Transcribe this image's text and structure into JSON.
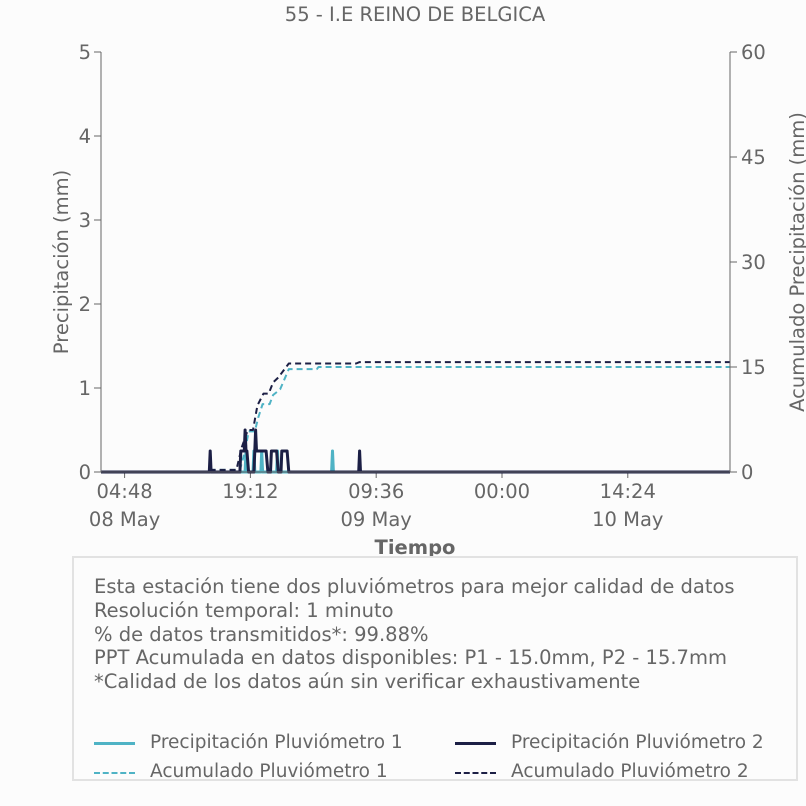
{
  "colors": {
    "p1": "#4fb3c5",
    "p2": "#1c1f45",
    "axis": "#666666",
    "text": "#666666"
  },
  "chart_data": {
    "type": "line",
    "title": "55 - I.E REINO DE BELGICA",
    "xlabel": "Tiempo",
    "ylabel_left": "Precipitación (mm)",
    "ylabel_right": "Acumulado Precipitación (mm)",
    "ylim_left": [
      0,
      5
    ],
    "ylim_right": [
      0,
      60
    ],
    "yticks_left": [
      "0",
      "1",
      "2",
      "3",
      "4",
      "5"
    ],
    "yticks_right": [
      "0",
      "15",
      "30",
      "45",
      "60"
    ],
    "x_unit": "hours since 08 May 00:00",
    "xlim": [
      2.1,
      74.1
    ],
    "xtick_labels": [
      {
        "x": 4.8,
        "time": "04:48",
        "date": "08 May"
      },
      {
        "x": 19.2,
        "time": "19:12",
        "date": ""
      },
      {
        "x": 33.6,
        "time": "09:36",
        "date": "09 May"
      },
      {
        "x": 48.0,
        "time": "00:00",
        "date": ""
      },
      {
        "x": 62.4,
        "time": "14:24",
        "date": "10 May"
      }
    ],
    "grid": false,
    "series": [
      {
        "name": "Precipitación Pluviómetro 1",
        "style": "solid",
        "axis": "left",
        "points": [
          [
            15.0,
            0.0
          ],
          [
            18.6,
            0.0
          ],
          [
            18.7,
            0.25
          ],
          [
            18.8,
            0.0
          ],
          [
            19.5,
            0.0
          ],
          [
            19.6,
            0.25
          ],
          [
            19.7,
            0.0
          ],
          [
            20.4,
            0.0
          ],
          [
            20.5,
            0.25
          ],
          [
            20.6,
            0.0
          ],
          [
            22.2,
            0.0
          ],
          [
            22.3,
            0.25
          ],
          [
            22.4,
            0.0
          ],
          [
            28.5,
            0.0
          ],
          [
            28.6,
            0.25
          ],
          [
            28.7,
            0.0
          ],
          [
            74.1,
            0.0
          ]
        ]
      },
      {
        "name": "Precipitación Pluviómetro 2",
        "style": "solid",
        "axis": "left",
        "points": [
          [
            2.1,
            0.0
          ],
          [
            14.5,
            0.0
          ],
          [
            14.6,
            0.25
          ],
          [
            14.7,
            0.0
          ],
          [
            18.0,
            0.0
          ],
          [
            18.1,
            0.25
          ],
          [
            18.2,
            0.25
          ],
          [
            18.3,
            0.25
          ],
          [
            18.4,
            0.25
          ],
          [
            18.5,
            0.25
          ],
          [
            18.6,
            0.5
          ],
          [
            18.7,
            0.25
          ],
          [
            18.8,
            0.25
          ],
          [
            19.0,
            0.0
          ],
          [
            19.6,
            0.0
          ],
          [
            19.7,
            0.25
          ],
          [
            19.8,
            0.5
          ],
          [
            19.9,
            0.25
          ],
          [
            20.0,
            0.25
          ],
          [
            20.2,
            0.25
          ],
          [
            20.4,
            0.25
          ],
          [
            20.6,
            0.25
          ],
          [
            20.8,
            0.25
          ],
          [
            21.0,
            0.25
          ],
          [
            21.2,
            0.0
          ],
          [
            21.5,
            0.0
          ],
          [
            21.6,
            0.25
          ],
          [
            21.8,
            0.25
          ],
          [
            22.0,
            0.25
          ],
          [
            22.2,
            0.25
          ],
          [
            22.4,
            0.0
          ],
          [
            22.7,
            0.0
          ],
          [
            22.8,
            0.25
          ],
          [
            23.0,
            0.25
          ],
          [
            23.2,
            0.25
          ],
          [
            23.4,
            0.25
          ],
          [
            23.6,
            0.0
          ],
          [
            31.6,
            0.0
          ],
          [
            31.7,
            0.25
          ],
          [
            31.8,
            0.0
          ],
          [
            74.1,
            0.0
          ]
        ]
      },
      {
        "name": "Acumulado Pluviómetro 1",
        "style": "dashed",
        "axis": "right",
        "points": [
          [
            2.1,
            0.0
          ],
          [
            14.6,
            0.0
          ],
          [
            14.7,
            0.3
          ],
          [
            18.0,
            0.3
          ],
          [
            18.6,
            3.0
          ],
          [
            19.0,
            5.8
          ],
          [
            19.7,
            5.8
          ],
          [
            20.1,
            7.8
          ],
          [
            20.6,
            9.7
          ],
          [
            21.4,
            9.7
          ],
          [
            21.8,
            11.0
          ],
          [
            22.6,
            11.8
          ],
          [
            23.6,
            14.7
          ],
          [
            26.8,
            14.7
          ],
          [
            27.0,
            15.0
          ],
          [
            74.1,
            15.0
          ]
        ]
      },
      {
        "name": "Acumulado Pluviómetro 2",
        "style": "dashed",
        "axis": "right",
        "points": [
          [
            2.1,
            0.0
          ],
          [
            14.6,
            0.0
          ],
          [
            14.7,
            0.3
          ],
          [
            17.6,
            0.3
          ],
          [
            18.2,
            3.5
          ],
          [
            18.9,
            6.0
          ],
          [
            19.5,
            6.0
          ],
          [
            20.0,
            9.5
          ],
          [
            20.7,
            11.2
          ],
          [
            21.3,
            11.2
          ],
          [
            21.8,
            12.8
          ],
          [
            22.4,
            13.5
          ],
          [
            23.6,
            15.5
          ],
          [
            31.3,
            15.5
          ],
          [
            31.7,
            15.7
          ],
          [
            74.1,
            15.7
          ]
        ]
      }
    ]
  },
  "info": {
    "lines": [
      "Esta estación tiene dos pluviómetros para mejor calidad de datos",
      "Resolución temporal: 1 minuto",
      "% de datos transmitidos*: 99.88%",
      "PPT Acumulada en datos disponibles: P1 - 15.0mm, P2 - 15.7mm",
      "*Calidad de los datos aún sin verificar exhaustivamente"
    ]
  },
  "legend": {
    "items": [
      {
        "label": "Precipitación Pluviómetro 1",
        "color": "#4fb3c5",
        "style": "solid"
      },
      {
        "label": "Precipitación Pluviómetro 2",
        "color": "#1c1f45",
        "style": "solid"
      },
      {
        "label": "Acumulado Pluviómetro 1",
        "color": "#4fb3c5",
        "style": "dashed"
      },
      {
        "label": "Acumulado Pluviómetro 2",
        "color": "#1c1f45",
        "style": "dashed"
      }
    ]
  }
}
